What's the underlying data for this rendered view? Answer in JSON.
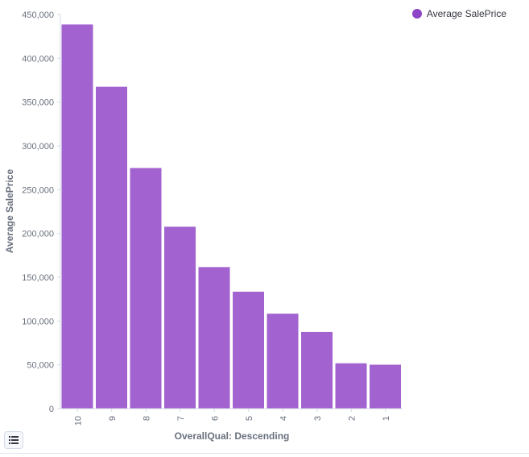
{
  "chart_data": {
    "type": "bar",
    "categories": [
      "10",
      "9",
      "8",
      "7",
      "6",
      "5",
      "4",
      "3",
      "2",
      "1"
    ],
    "series": [
      {
        "name": "Average SalePrice",
        "values": [
          438588,
          367513,
          274736,
          207716,
          161603,
          133523,
          108421,
          87474,
          51770,
          50150
        ]
      }
    ],
    "xlabel": "OverallQual: Descending",
    "ylabel": "Average SalePrice",
    "ylim": [
      0,
      450000
    ],
    "yticks": [
      0,
      50000,
      100000,
      150000,
      200000,
      250000,
      300000,
      350000,
      400000,
      450000
    ],
    "ytick_labels": [
      "0",
      "50,000",
      "100,000",
      "150,000",
      "200,000",
      "250,000",
      "300,000",
      "350,000",
      "400,000",
      "450,000"
    ],
    "grid": false,
    "legend_position": "top-right",
    "bar_color": "#a262cf"
  },
  "legend": {
    "label": "Average SalePrice",
    "color": "#8e44c6"
  },
  "legend_toggle": {
    "icon": "list-icon"
  }
}
